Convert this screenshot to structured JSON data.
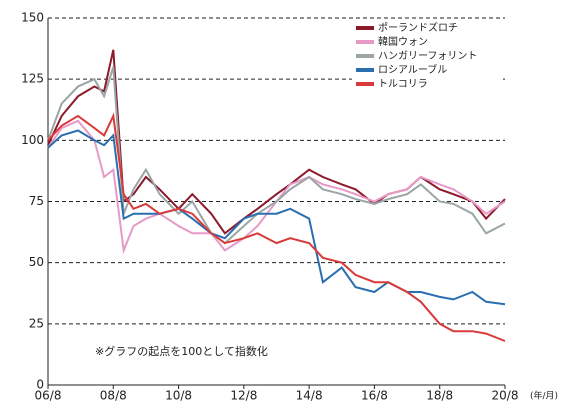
{
  "chart_data": {
    "type": "line",
    "x": [
      2006.58,
      2007.0,
      2007.5,
      2008.0,
      2008.3,
      2008.58,
      2008.9,
      2009.2,
      2009.58,
      2010.0,
      2010.58,
      2011.0,
      2011.58,
      2012.0,
      2012.58,
      2013.0,
      2013.58,
      2014.0,
      2014.58,
      2015.0,
      2015.58,
      2016.0,
      2016.58,
      2017.0,
      2017.58,
      2018.0,
      2018.58,
      2019.0,
      2019.58,
      2020.0,
      2020.58
    ],
    "series": [
      {
        "name": "ポーランドズロチ",
        "color": "#8b1a2b",
        "values": [
          98,
          110,
          118,
          122,
          120,
          137,
          75,
          78,
          85,
          80,
          72,
          78,
          70,
          62,
          68,
          72,
          78,
          82,
          88,
          85,
          82,
          80,
          74,
          78,
          80,
          85,
          80,
          78,
          75,
          68,
          76
        ]
      },
      {
        "name": "韓国ウォン",
        "color": "#e89ac7",
        "values": [
          97,
          105,
          108,
          100,
          85,
          88,
          55,
          65,
          68,
          70,
          65,
          62,
          62,
          55,
          60,
          65,
          75,
          82,
          85,
          82,
          80,
          78,
          75,
          78,
          80,
          85,
          82,
          80,
          75,
          70,
          75
        ]
      },
      {
        "name": "ハンガリーフォリント",
        "color": "#9aa5a5",
        "values": [
          100,
          115,
          122,
          125,
          118,
          130,
          70,
          80,
          88,
          78,
          70,
          75,
          62,
          58,
          65,
          70,
          75,
          80,
          85,
          80,
          78,
          76,
          74,
          76,
          78,
          82,
          75,
          74,
          70,
          62,
          66
        ]
      },
      {
        "name": "ロシアルーブル",
        "color": "#2a6fb0",
        "values": [
          97,
          102,
          104,
          100,
          98,
          102,
          68,
          70,
          70,
          70,
          72,
          68,
          62,
          60,
          68,
          70,
          70,
          72,
          68,
          42,
          48,
          40,
          38,
          42,
          38,
          38,
          36,
          35,
          38,
          34,
          33
        ]
      },
      {
        "name": "トルコリラ",
        "color": "#d93a3a",
        "values": [
          100,
          106,
          110,
          105,
          102,
          110,
          78,
          72,
          74,
          70,
          72,
          70,
          62,
          58,
          60,
          62,
          58,
          60,
          58,
          52,
          50,
          45,
          42,
          42,
          38,
          34,
          25,
          22,
          22,
          21,
          18
        ]
      }
    ],
    "xlim": [
      2006.58,
      2020.58
    ],
    "xticks": [
      {
        "value": 2006.58,
        "label": "06/8"
      },
      {
        "value": 2008.58,
        "label": "08/8"
      },
      {
        "value": 2010.58,
        "label": "10/8"
      },
      {
        "value": 2012.58,
        "label": "12/8"
      },
      {
        "value": 2014.58,
        "label": "14/8"
      },
      {
        "value": 2016.58,
        "label": "16/8"
      },
      {
        "value": 2018.58,
        "label": "18/8"
      },
      {
        "value": 2020.58,
        "label": "20/8"
      }
    ],
    "x_unit": "(年/月)",
    "ylim": [
      0,
      150
    ],
    "yticks": [
      0,
      25,
      50,
      75,
      100,
      125,
      150
    ],
    "grid": true,
    "annotation": "※グラフの起点を100として指数化",
    "legend": "top-right"
  }
}
